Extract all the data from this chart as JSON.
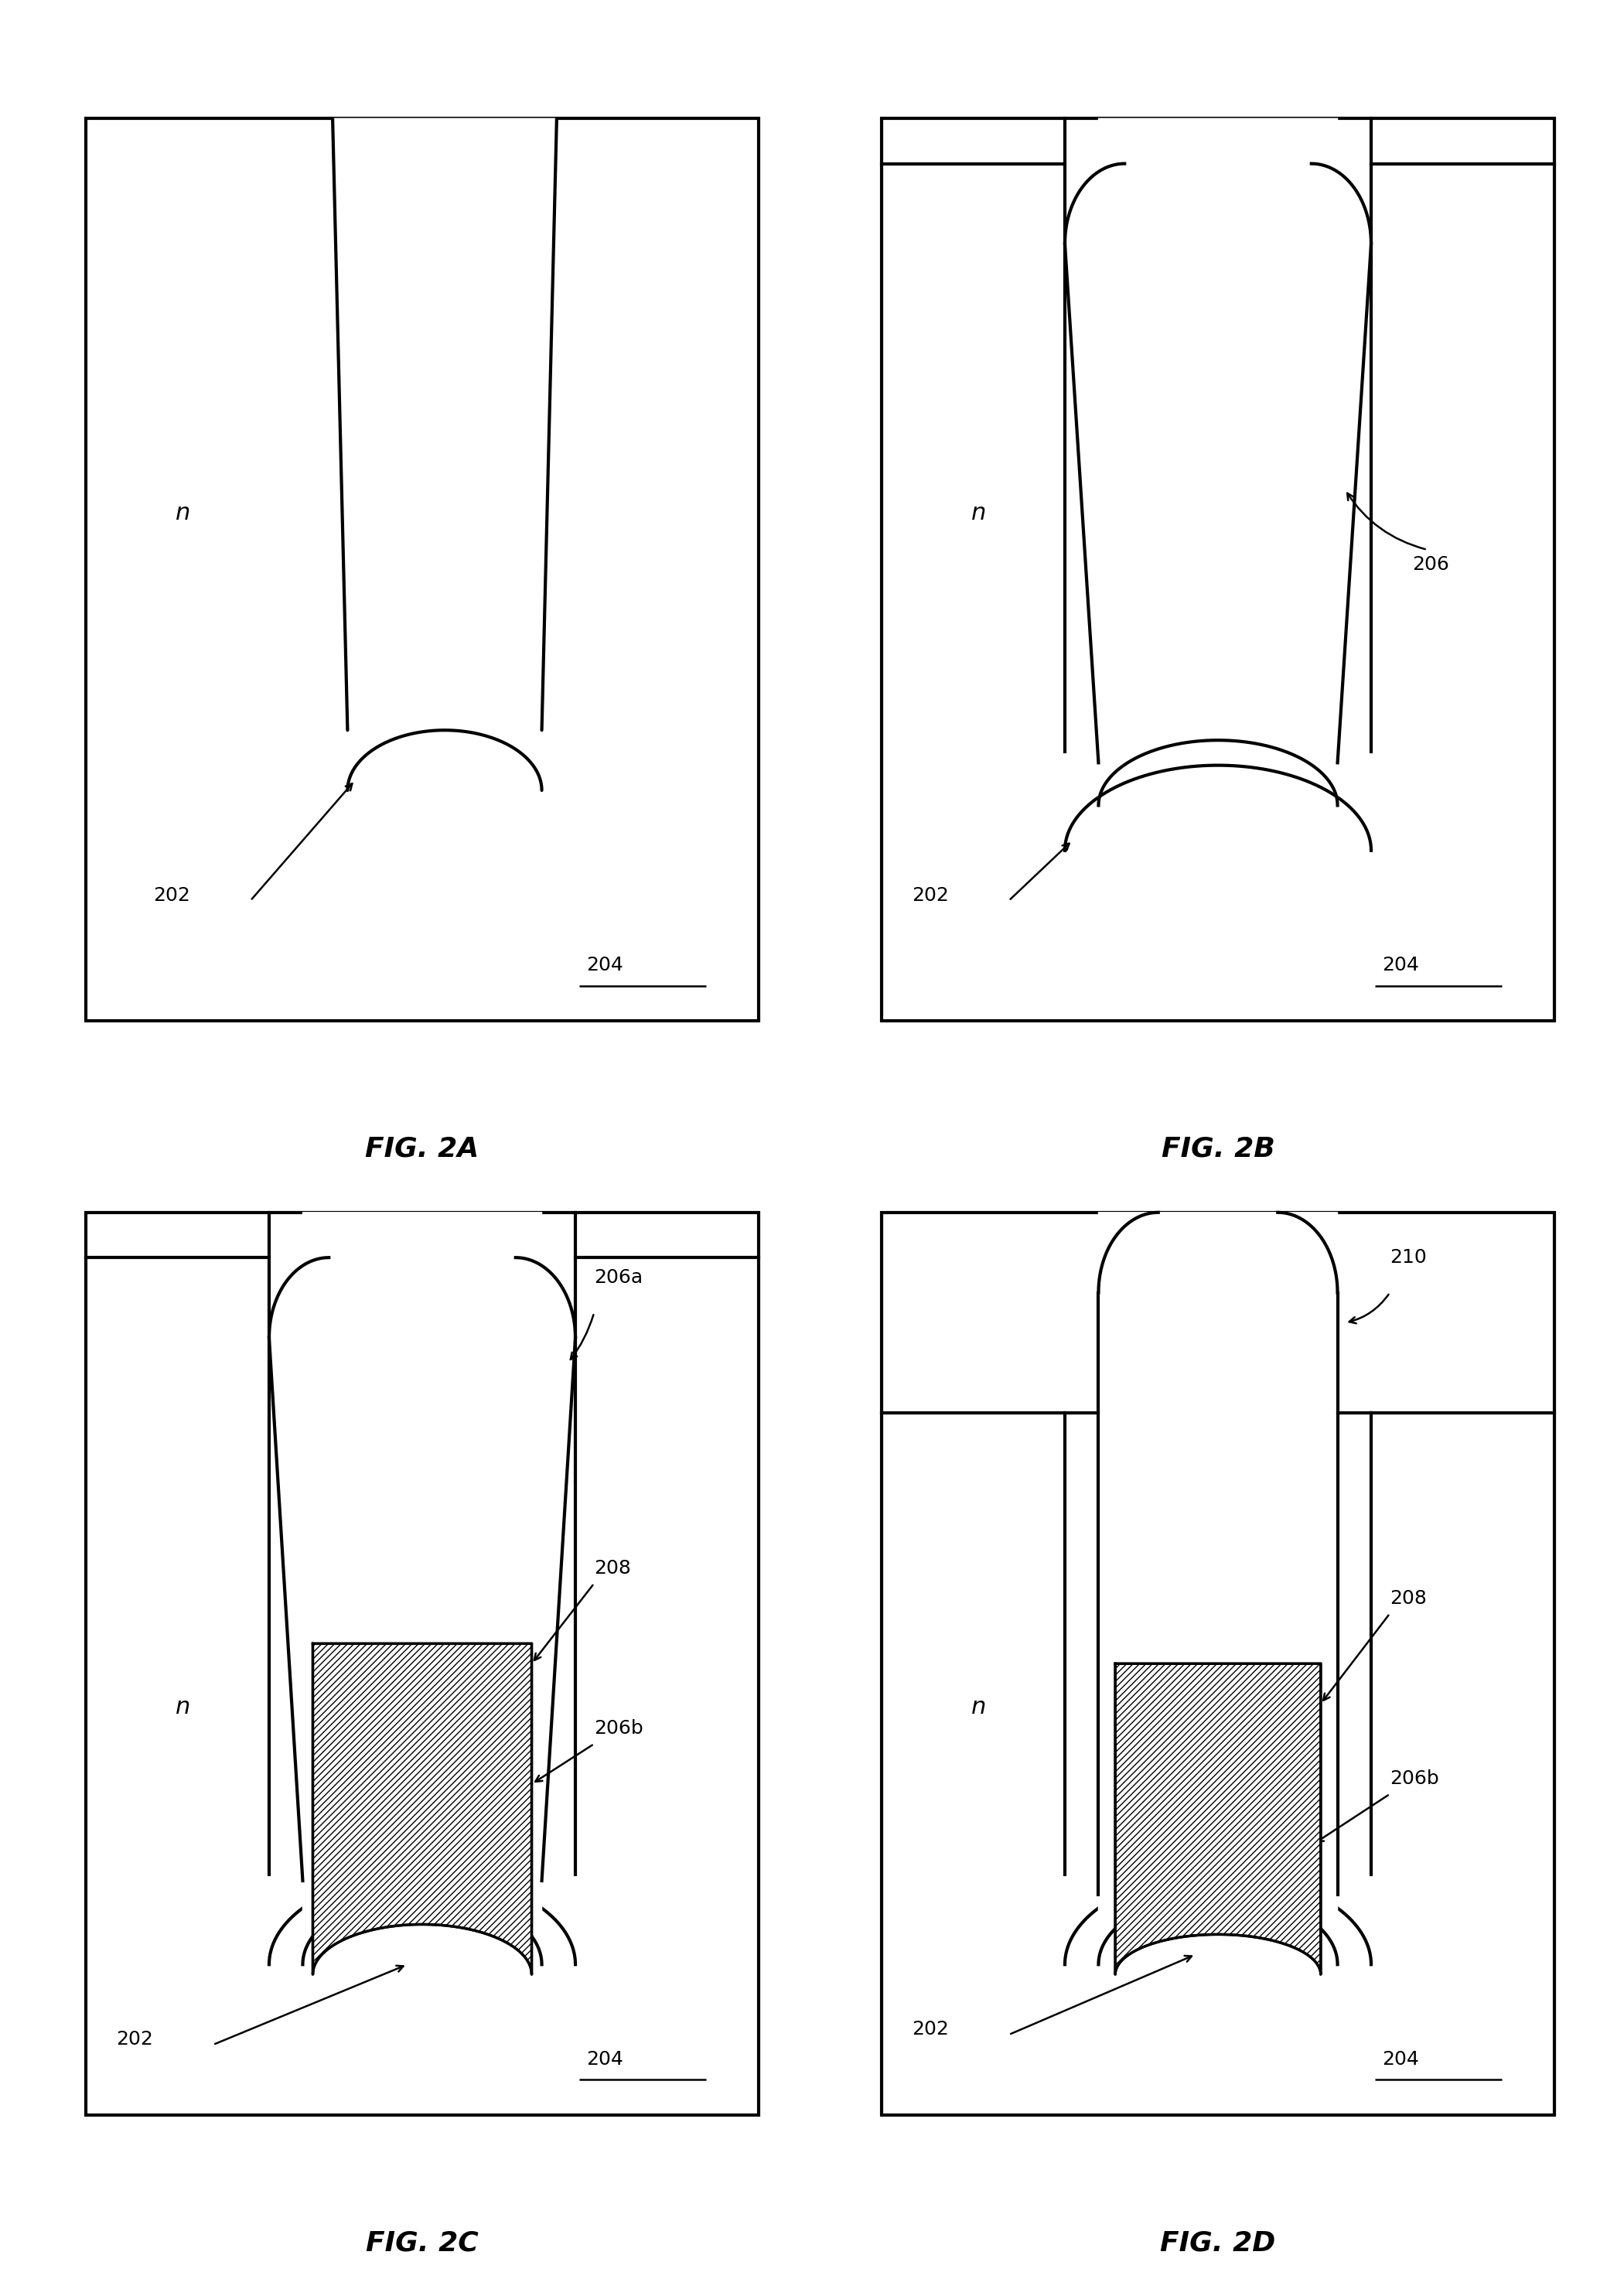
{
  "bg_color": "#ffffff",
  "line_color": "#000000",
  "line_width": 3.0,
  "fig_labels": [
    "FIG. 2A",
    "FIG. 2B",
    "FIG. 2C",
    "FIG. 2D"
  ],
  "n_fontsize": 22,
  "label_fontsize": 18,
  "figlabel_fontsize": 26
}
